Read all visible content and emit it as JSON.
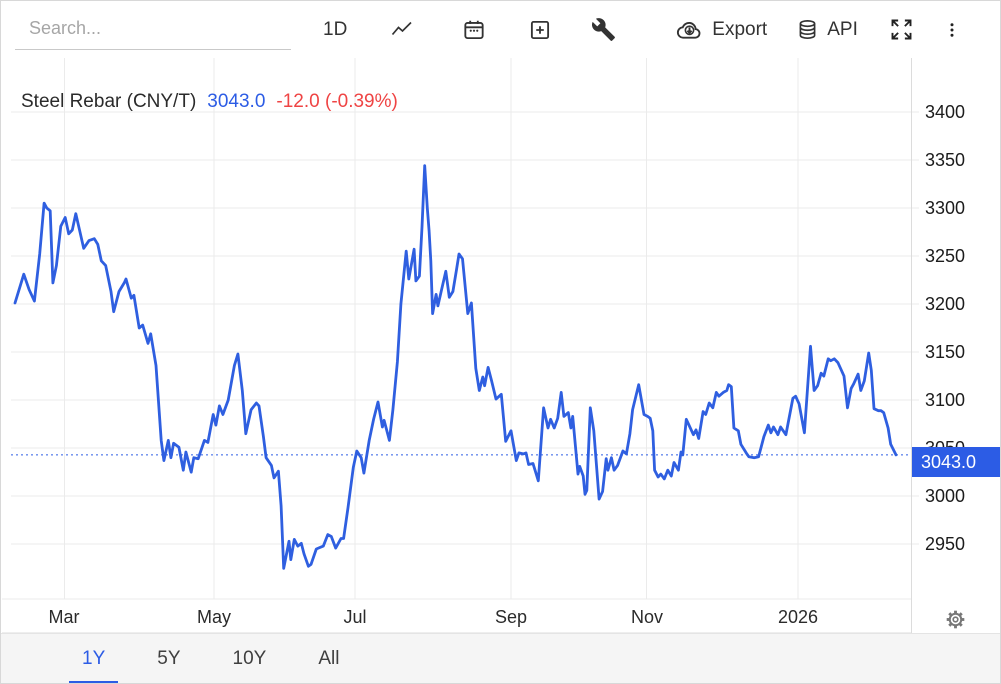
{
  "toolbar": {
    "search_placeholder": "Search...",
    "interval_label": "1D",
    "export_label": "Export",
    "api_label": "API"
  },
  "header": {
    "instrument": "Steel Rebar (CNY/T)",
    "last_price": "3043.0",
    "change": "-12.0 (-0.39%)"
  },
  "price_badge": "3043.0",
  "range_tabs": [
    {
      "label": "1Y",
      "active": true
    },
    {
      "label": "5Y",
      "active": false
    },
    {
      "label": "10Y",
      "active": false
    },
    {
      "label": "All",
      "active": false
    }
  ],
  "colors": {
    "accent": "#2c5ce5",
    "line": "#2f5fe0",
    "negative": "#ef4444",
    "grid": "#ebebeb",
    "axis_border": "#dcdcdc",
    "text": "#222222",
    "muted": "#757575"
  },
  "chart_data": {
    "type": "line",
    "title": "Steel Rebar (CNY/T)",
    "unit": "CNY/T",
    "last_value": 3043.0,
    "change": -12.0,
    "change_pct": -0.39,
    "legend": [],
    "grid": true,
    "y_axis_side": "right",
    "y_ticks": [
      3400,
      3350,
      3300,
      3250,
      3200,
      3150,
      3100,
      3050,
      3000,
      2950
    ],
    "y_range": [
      2893,
      3456
    ],
    "x_ticks": [
      {
        "label": "Mar",
        "t": 0.056
      },
      {
        "label": "May",
        "t": 0.226
      },
      {
        "label": "Jul",
        "t": 0.386
      },
      {
        "label": "Sep",
        "t": 0.563
      },
      {
        "label": "Nov",
        "t": 0.717
      },
      {
        "label": "2026",
        "t": 0.889
      }
    ],
    "points": [
      [
        0.0,
        3201
      ],
      [
        0.01,
        3231
      ],
      [
        0.016,
        3215
      ],
      [
        0.022,
        3203
      ],
      [
        0.028,
        3252
      ],
      [
        0.033,
        3305
      ],
      [
        0.036,
        3300
      ],
      [
        0.04,
        3297
      ],
      [
        0.043,
        3222
      ],
      [
        0.047,
        3240
      ],
      [
        0.052,
        3281
      ],
      [
        0.057,
        3290
      ],
      [
        0.061,
        3273
      ],
      [
        0.065,
        3277
      ],
      [
        0.069,
        3294
      ],
      [
        0.073,
        3278
      ],
      [
        0.078,
        3258
      ],
      [
        0.084,
        3266
      ],
      [
        0.09,
        3268
      ],
      [
        0.094,
        3262
      ],
      [
        0.098,
        3245
      ],
      [
        0.103,
        3240
      ],
      [
        0.109,
        3213
      ],
      [
        0.112,
        3192
      ],
      [
        0.118,
        3213
      ],
      [
        0.124,
        3222
      ],
      [
        0.126,
        3226
      ],
      [
        0.132,
        3206
      ],
      [
        0.135,
        3209
      ],
      [
        0.141,
        3175
      ],
      [
        0.145,
        3178
      ],
      [
        0.151,
        3159
      ],
      [
        0.154,
        3169
      ],
      [
        0.16,
        3136
      ],
      [
        0.166,
        3058
      ],
      [
        0.169,
        3037
      ],
      [
        0.174,
        3058
      ],
      [
        0.177,
        3040
      ],
      [
        0.18,
        3055
      ],
      [
        0.186,
        3051
      ],
      [
        0.191,
        3027
      ],
      [
        0.194,
        3046
      ],
      [
        0.2,
        3025
      ],
      [
        0.203,
        3040
      ],
      [
        0.208,
        3039
      ],
      [
        0.215,
        3058
      ],
      [
        0.219,
        3056
      ],
      [
        0.225,
        3085
      ],
      [
        0.228,
        3074
      ],
      [
        0.232,
        3094
      ],
      [
        0.236,
        3085
      ],
      [
        0.242,
        3100
      ],
      [
        0.249,
        3136
      ],
      [
        0.253,
        3148
      ],
      [
        0.258,
        3110
      ],
      [
        0.262,
        3065
      ],
      [
        0.268,
        3090
      ],
      [
        0.274,
        3097
      ],
      [
        0.277,
        3094
      ],
      [
        0.282,
        3062
      ],
      [
        0.285,
        3040
      ],
      [
        0.291,
        3032
      ],
      [
        0.294,
        3019
      ],
      [
        0.299,
        3026
      ],
      [
        0.302,
        2990
      ],
      [
        0.305,
        2925
      ],
      [
        0.311,
        2953
      ],
      [
        0.313,
        2934
      ],
      [
        0.317,
        2955
      ],
      [
        0.321,
        2948
      ],
      [
        0.325,
        2951
      ],
      [
        0.328,
        2940
      ],
      [
        0.333,
        2927
      ],
      [
        0.336,
        2929
      ],
      [
        0.342,
        2945
      ],
      [
        0.35,
        2948
      ],
      [
        0.355,
        2960
      ],
      [
        0.359,
        2958
      ],
      [
        0.364,
        2946
      ],
      [
        0.37,
        2956
      ],
      [
        0.373,
        2956
      ],
      [
        0.378,
        2988
      ],
      [
        0.384,
        3030
      ],
      [
        0.388,
        3047
      ],
      [
        0.393,
        3040
      ],
      [
        0.396,
        3024
      ],
      [
        0.402,
        3058
      ],
      [
        0.407,
        3080
      ],
      [
        0.412,
        3098
      ],
      [
        0.417,
        3072
      ],
      [
        0.419,
        3079
      ],
      [
        0.425,
        3058
      ],
      [
        0.429,
        3090
      ],
      [
        0.434,
        3140
      ],
      [
        0.438,
        3200
      ],
      [
        0.444,
        3255
      ],
      [
        0.447,
        3226
      ],
      [
        0.453,
        3257
      ],
      [
        0.455,
        3224
      ],
      [
        0.459,
        3229
      ],
      [
        0.462,
        3280
      ],
      [
        0.465,
        3344
      ],
      [
        0.468,
        3300
      ],
      [
        0.47,
        3276
      ],
      [
        0.472,
        3245
      ],
      [
        0.474,
        3190
      ],
      [
        0.478,
        3210
      ],
      [
        0.48,
        3198
      ],
      [
        0.484,
        3214
      ],
      [
        0.489,
        3234
      ],
      [
        0.493,
        3207
      ],
      [
        0.497,
        3213
      ],
      [
        0.501,
        3235
      ],
      [
        0.504,
        3252
      ],
      [
        0.508,
        3247
      ],
      [
        0.514,
        3190
      ],
      [
        0.518,
        3201
      ],
      [
        0.523,
        3133
      ],
      [
        0.527,
        3110
      ],
      [
        0.531,
        3124
      ],
      [
        0.533,
        3115
      ],
      [
        0.537,
        3134
      ],
      [
        0.541,
        3120
      ],
      [
        0.546,
        3101
      ],
      [
        0.552,
        3106
      ],
      [
        0.557,
        3057
      ],
      [
        0.563,
        3068
      ],
      [
        0.569,
        3037
      ],
      [
        0.572,
        3045
      ],
      [
        0.577,
        3044
      ],
      [
        0.58,
        3045
      ],
      [
        0.583,
        3033
      ],
      [
        0.588,
        3034
      ],
      [
        0.594,
        3016
      ],
      [
        0.6,
        3092
      ],
      [
        0.605,
        3071
      ],
      [
        0.608,
        3080
      ],
      [
        0.612,
        3071
      ],
      [
        0.616,
        3081
      ],
      [
        0.62,
        3108
      ],
      [
        0.623,
        3083
      ],
      [
        0.628,
        3087
      ],
      [
        0.631,
        3071
      ],
      [
        0.633,
        3083
      ],
      [
        0.639,
        3023
      ],
      [
        0.641,
        3031
      ],
      [
        0.645,
        3021
      ],
      [
        0.647,
        3002
      ],
      [
        0.649,
        3006
      ],
      [
        0.653,
        3092
      ],
      [
        0.657,
        3068
      ],
      [
        0.663,
        2997
      ],
      [
        0.667,
        3005
      ],
      [
        0.671,
        3039
      ],
      [
        0.673,
        3027
      ],
      [
        0.677,
        3040
      ],
      [
        0.68,
        3027
      ],
      [
        0.684,
        3032
      ],
      [
        0.69,
        3047
      ],
      [
        0.694,
        3044
      ],
      [
        0.698,
        3065
      ],
      [
        0.701,
        3090
      ],
      [
        0.708,
        3116
      ],
      [
        0.714,
        3085
      ],
      [
        0.718,
        3083
      ],
      [
        0.721,
        3081
      ],
      [
        0.724,
        3068
      ],
      [
        0.726,
        3027
      ],
      [
        0.73,
        3020
      ],
      [
        0.733,
        3023
      ],
      [
        0.737,
        3018
      ],
      [
        0.741,
        3027
      ],
      [
        0.745,
        3021
      ],
      [
        0.748,
        3035
      ],
      [
        0.753,
        3027
      ],
      [
        0.756,
        3046
      ],
      [
        0.758,
        3043
      ],
      [
        0.762,
        3080
      ],
      [
        0.765,
        3074
      ],
      [
        0.77,
        3064
      ],
      [
        0.773,
        3069
      ],
      [
        0.776,
        3060
      ],
      [
        0.781,
        3088
      ],
      [
        0.784,
        3085
      ],
      [
        0.788,
        3097
      ],
      [
        0.792,
        3092
      ],
      [
        0.796,
        3108
      ],
      [
        0.799,
        3104
      ],
      [
        0.804,
        3108
      ],
      [
        0.808,
        3110
      ],
      [
        0.81,
        3116
      ],
      [
        0.813,
        3114
      ],
      [
        0.816,
        3071
      ],
      [
        0.821,
        3068
      ],
      [
        0.824,
        3054
      ],
      [
        0.83,
        3045
      ],
      [
        0.833,
        3041
      ],
      [
        0.839,
        3040
      ],
      [
        0.844,
        3041
      ],
      [
        0.85,
        3062
      ],
      [
        0.855,
        3074
      ],
      [
        0.858,
        3066
      ],
      [
        0.861,
        3072
      ],
      [
        0.866,
        3064
      ],
      [
        0.869,
        3072
      ],
      [
        0.875,
        3064
      ],
      [
        0.883,
        3102
      ],
      [
        0.886,
        3104
      ],
      [
        0.89,
        3096
      ],
      [
        0.896,
        3066
      ],
      [
        0.903,
        3156
      ],
      [
        0.907,
        3110
      ],
      [
        0.911,
        3115
      ],
      [
        0.915,
        3128
      ],
      [
        0.918,
        3125
      ],
      [
        0.923,
        3143
      ],
      [
        0.926,
        3141
      ],
      [
        0.93,
        3143
      ],
      [
        0.934,
        3139
      ],
      [
        0.938,
        3131
      ],
      [
        0.941,
        3125
      ],
      [
        0.945,
        3092
      ],
      [
        0.949,
        3112
      ],
      [
        0.952,
        3117
      ],
      [
        0.957,
        3127
      ],
      [
        0.96,
        3110
      ],
      [
        0.964,
        3120
      ],
      [
        0.969,
        3149
      ],
      [
        0.972,
        3131
      ],
      [
        0.975,
        3091
      ],
      [
        0.98,
        3089
      ],
      [
        0.983,
        3089
      ],
      [
        0.986,
        3087
      ],
      [
        0.991,
        3071
      ],
      [
        0.994,
        3054
      ],
      [
        1.0,
        3043
      ]
    ]
  }
}
